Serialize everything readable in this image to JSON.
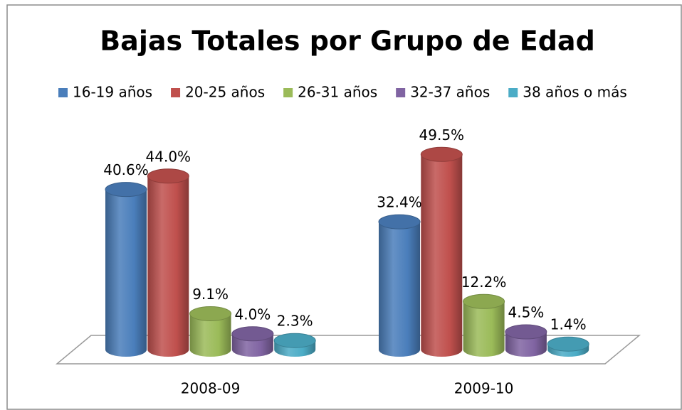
{
  "chart_data": {
    "type": "bar3d",
    "title": "Bajas Totales por Grupo de Edad",
    "categories": [
      "2008-09",
      "2009-10"
    ],
    "series": [
      {
        "name": "16-19 años",
        "color": "#4a7ebb",
        "values": [
          40.6,
          32.4
        ],
        "value_labels": [
          "40.6%",
          "32.4%"
        ]
      },
      {
        "name": "20-25 años",
        "color": "#c0504d",
        "values": [
          44.0,
          49.5
        ],
        "value_labels": [
          "44.0%",
          "49.5%"
        ]
      },
      {
        "name": "26-31 años",
        "color": "#9bbb59",
        "values": [
          9.1,
          12.2
        ],
        "value_labels": [
          "9.1%",
          "12.2%"
        ]
      },
      {
        "name": "32-37 años",
        "color": "#8064a2",
        "values": [
          4.0,
          4.5
        ],
        "value_labels": [
          "4.0%",
          "4.5%"
        ]
      },
      {
        "name": "38 años o más",
        "color": "#4bacc6",
        "values": [
          2.3,
          1.4
        ],
        "value_labels": [
          "2.3%",
          "1.4%"
        ]
      }
    ],
    "legend": "top"
  }
}
